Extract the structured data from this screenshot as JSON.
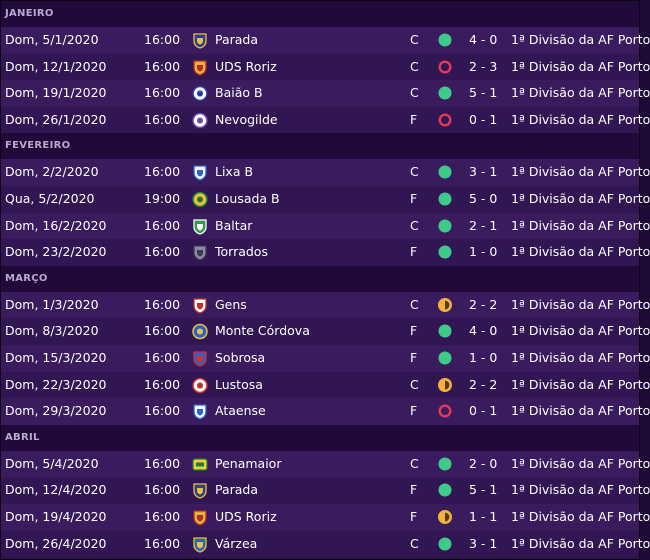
{
  "colors": {
    "win": "#3ecb8a",
    "draw": "#f0b23a",
    "loss": "#e23b57"
  },
  "months": [
    {
      "label": "JANEIRO",
      "fixtures": [
        {
          "date": "Dom, 5/1/2020",
          "time": "16:00",
          "team": "Parada",
          "badge": "parada-crest-icon",
          "venue": "C",
          "result": "win",
          "score": "4 - 0",
          "competition": "1ª Divisão da AF Porto"
        },
        {
          "date": "Dom, 12/1/2020",
          "time": "16:00",
          "team": "UDS Roriz",
          "badge": "uds-roriz-crest-icon",
          "venue": "C",
          "result": "loss",
          "score": "2 - 3",
          "competition": "1ª Divisão da AF Porto"
        },
        {
          "date": "Dom, 19/1/2020",
          "time": "16:00",
          "team": "Baião B",
          "badge": "baiao-b-crest-icon",
          "venue": "C",
          "result": "win",
          "score": "5 - 1",
          "competition": "1ª Divisão da AF Porto"
        },
        {
          "date": "Dom, 26/1/2020",
          "time": "16:00",
          "team": "Nevogilde",
          "badge": "nevogilde-crest-icon",
          "venue": "F",
          "result": "loss",
          "score": "0 - 1",
          "competition": "1ª Divisão da AF Porto"
        }
      ]
    },
    {
      "label": "FEVEREIRO",
      "fixtures": [
        {
          "date": "Dom, 2/2/2020",
          "time": "16:00",
          "team": "Lixa B",
          "badge": "lixa-b-crest-icon",
          "venue": "C",
          "result": "win",
          "score": "3 - 1",
          "competition": "1ª Divisão da AF Porto"
        },
        {
          "date": "Qua, 5/2/2020",
          "time": "19:00",
          "team": "Lousada B",
          "badge": "lousada-b-crest-icon",
          "venue": "F",
          "result": "win",
          "score": "5 - 0",
          "competition": "1ª Divisão da AF Porto"
        },
        {
          "date": "Dom, 16/2/2020",
          "time": "16:00",
          "team": "Baltar",
          "badge": "baltar-crest-icon",
          "venue": "C",
          "result": "win",
          "score": "2 - 1",
          "competition": "1ª Divisão da AF Porto"
        },
        {
          "date": "Dom, 23/2/2020",
          "time": "16:00",
          "team": "Torrados",
          "badge": "torrados-crest-icon",
          "venue": "F",
          "result": "win",
          "score": "1 - 0",
          "competition": "1ª Divisão da AF Porto"
        }
      ]
    },
    {
      "label": "MARÇO",
      "fixtures": [
        {
          "date": "Dom, 1/3/2020",
          "time": "16:00",
          "team": "Gens",
          "badge": "gens-crest-icon",
          "venue": "C",
          "result": "draw",
          "score": "2 - 2",
          "competition": "1ª Divisão da AF Porto"
        },
        {
          "date": "Dom, 8/3/2020",
          "time": "16:00",
          "team": "Monte Córdova",
          "badge": "monte-cordova-crest-icon",
          "venue": "F",
          "result": "win",
          "score": "4 - 0",
          "competition": "1ª Divisão da AF Porto"
        },
        {
          "date": "Dom, 15/3/2020",
          "time": "16:00",
          "team": "Sobrosa",
          "badge": "sobrosa-crest-icon",
          "venue": "F",
          "result": "win",
          "score": "1 - 0",
          "competition": "1ª Divisão da AF Porto"
        },
        {
          "date": "Dom, 22/3/2020",
          "time": "16:00",
          "team": "Lustosa",
          "badge": "lustosa-crest-icon",
          "venue": "C",
          "result": "draw",
          "score": "2 - 2",
          "competition": "1ª Divisão da AF Porto"
        },
        {
          "date": "Dom, 29/3/2020",
          "time": "16:00",
          "team": "Ataense",
          "badge": "ataense-crest-icon",
          "venue": "F",
          "result": "loss",
          "score": "0 - 1",
          "competition": "1ª Divisão da AF Porto"
        }
      ]
    },
    {
      "label": "ABRIL",
      "fixtures": [
        {
          "date": "Dom, 5/4/2020",
          "time": "16:00",
          "team": "Penamaior",
          "badge": "penamaior-crest-icon",
          "venue": "C",
          "result": "win",
          "score": "2 - 0",
          "competition": "1ª Divisão da AF Porto"
        },
        {
          "date": "Dom, 12/4/2020",
          "time": "16:00",
          "team": "Parada",
          "badge": "parada-crest-icon",
          "venue": "F",
          "result": "win",
          "score": "5 - 1",
          "competition": "1ª Divisão da AF Porto"
        },
        {
          "date": "Dom, 19/4/2020",
          "time": "16:00",
          "team": "UDS Roriz",
          "badge": "uds-roriz-crest-icon",
          "venue": "F",
          "result": "draw",
          "score": "1 - 1",
          "competition": "1ª Divisão da AF Porto"
        },
        {
          "date": "Dom, 26/4/2020",
          "time": "16:00",
          "team": "Várzea",
          "badge": "varzea-crest-icon",
          "venue": "C",
          "result": "win",
          "score": "3 - 1",
          "competition": "1ª Divisão da AF Porto"
        }
      ]
    }
  ]
}
